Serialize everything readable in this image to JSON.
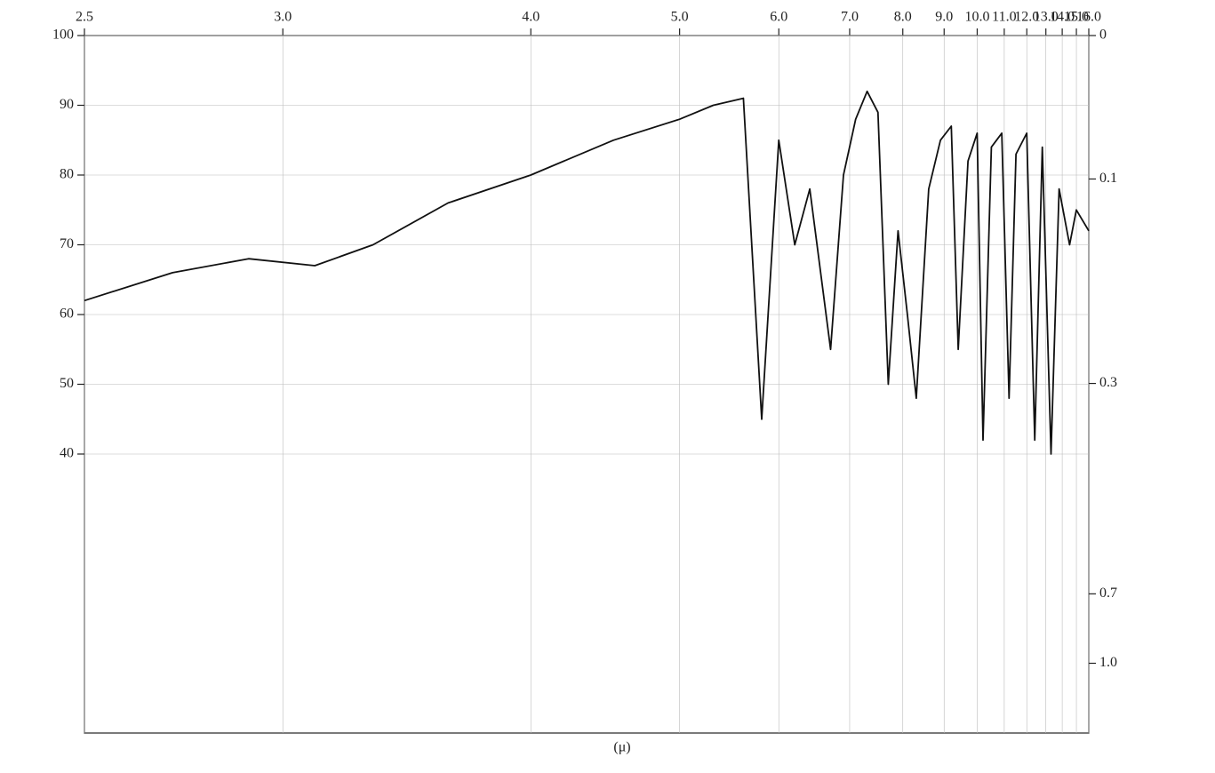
{
  "chart_data": {
    "type": "line",
    "x_label": "(μ)",
    "xscale": "reciprocal",
    "y2scale": "absorbance",
    "grid": true,
    "color": "#111111",
    "x": [
      2.5,
      2.7,
      2.9,
      3.1,
      3.3,
      3.6,
      4.0,
      4.5,
      5.0,
      5.3,
      5.6,
      5.8,
      6.0,
      6.2,
      6.4,
      6.7,
      6.9,
      7.1,
      7.3,
      7.5,
      7.7,
      7.9,
      8.1,
      8.3,
      8.6,
      8.9,
      9.2,
      9.4,
      9.7,
      10.0,
      10.2,
      10.5,
      10.9,
      11.2,
      11.5,
      12.0,
      12.4,
      12.8,
      13.3,
      13.8,
      14.5,
      15.0,
      16.0
    ],
    "values": [
      62,
      66,
      68,
      67,
      70,
      76,
      80,
      85,
      88,
      90,
      91,
      45,
      85,
      70,
      78,
      55,
      80,
      88,
      92,
      89,
      50,
      72,
      60,
      48,
      78,
      85,
      87,
      55,
      82,
      86,
      42,
      84,
      86,
      48,
      83,
      86,
      42,
      84,
      40,
      78,
      70,
      75,
      72
    ],
    "xlim": [
      2.5,
      16
    ],
    "xticks": [
      2.5,
      {
        "value": 3,
        "label": "3.0"
      },
      {
        "value": 4,
        "label": "4.0"
      },
      {
        "value": 5,
        "label": "5.0"
      },
      {
        "value": 6,
        "label": "6.0"
      },
      {
        "value": 7,
        "label": "7.0"
      },
      {
        "value": 8,
        "label": "8.0"
      },
      {
        "value": 9,
        "label": "9.0"
      },
      {
        "value": 10,
        "label": "10.0"
      },
      {
        "value": 11,
        "label": "11.0"
      },
      {
        "value": 12,
        "label": "12.0"
      },
      {
        "value": 13,
        "label": "13.0"
      },
      {
        "value": 14,
        "label": "14.0"
      },
      {
        "value": 15,
        "label": "15.0"
      },
      {
        "value": 16,
        "label": "16.0"
      }
    ],
    "ylim": [
      0,
      100
    ],
    "yticks": [
      40,
      50,
      60,
      70,
      80,
      90,
      100
    ],
    "y2ticks": [
      0,
      0.1,
      0.3,
      0.7,
      {
        "value": 1,
        "label": "1.0"
      }
    ]
  }
}
